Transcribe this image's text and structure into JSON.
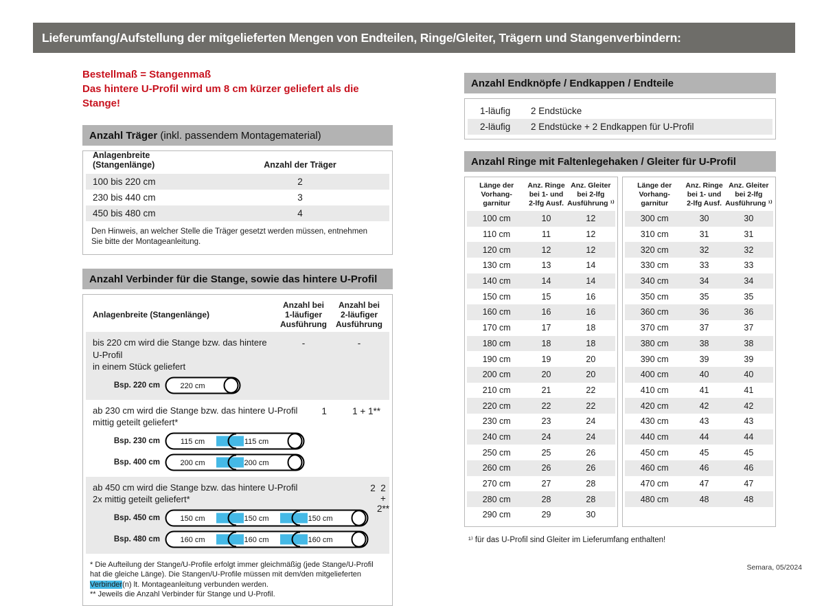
{
  "page": {
    "title": "Lieferumfang/Aufstellung der mitgelieferten Mengen von Endteilen, Ringe/Gleiter, Trägern und Stangenverbindern:",
    "footer": "Semara, 05/2024"
  },
  "colors": {
    "title_bar_gray": "#6e6d69",
    "section_header_gray": "#b3b3b3",
    "row_stripe_gray": "#e9e9e9",
    "accent_red": "#c8121e",
    "connector_cyan": "#45b9e6"
  },
  "notice": {
    "line1": "Bestellmaß = Stangenmaß",
    "line2": "Das hintere U-Profil wird um 8 cm kürzer geliefert als die Stange!"
  },
  "traeger": {
    "header_bold": "Anzahl Träger",
    "header_rest": " (inkl. passendem Montagematerial)",
    "col1": "Anlagenbreite (Stangenlänge)",
    "col2": "Anzahl der Träger",
    "rows": [
      [
        "100 bis 220 cm",
        "2"
      ],
      [
        "230 bis 440 cm",
        "3"
      ],
      [
        "450 bis 480 cm",
        "4"
      ]
    ],
    "note": "Den Hinweis, an welcher Stelle die Träger gesetzt werden müssen, entnehmen Sie bitte der Montageanleitung."
  },
  "verbinder": {
    "header": "Anzahl Verbinder für die Stange, sowie das hintere U-Profil",
    "col1": "Anlagenbreite (Stangenlänge)",
    "col2": "Anzahl bei\n1-läufiger\nAusführung",
    "col3": "Anzahl bei\n2-läufiger\nAusführung",
    "rows": [
      {
        "text": "bis 220 cm wird die Stange bzw. das hintere U-Profil\nin einem Stück geliefert",
        "v1": "-",
        "v2": "-",
        "rods": [
          {
            "label": "Bsp. 220 cm",
            "segments": [
              "220 cm"
            ]
          }
        ]
      },
      {
        "text": "ab 230 cm wird die Stange bzw. das hintere U-Profil\nmittig geteilt geliefert*",
        "v1": "1",
        "v2": "1 + 1**",
        "rods": [
          {
            "label": "Bsp. 230 cm",
            "segments": [
              "115 cm",
              "115 cm"
            ]
          },
          {
            "label": "Bsp. 400 cm",
            "segments": [
              "200 cm",
              "200 cm"
            ]
          }
        ]
      },
      {
        "text": "ab 450 cm wird die Stange bzw. das hintere U-Profil\n2x mittig geteilt geliefert*",
        "v1": "2",
        "v2": "2 + 2**",
        "rods": [
          {
            "label": "Bsp. 450 cm",
            "segments": [
              "150 cm",
              "150 cm",
              "150 cm"
            ]
          },
          {
            "label": "Bsp. 480 cm",
            "segments": [
              "160 cm",
              "160 cm",
              "160 cm"
            ]
          }
        ]
      }
    ],
    "footnote1_pre": "* Die Aufteilung der Stange/U-Profile erfolgt immer gleichmäßig (jede Stange/U-Profil hat die gleiche Länge). Die Stangen/U-Profile müssen mit dem/den mitgelieferten ",
    "footnote1_highlight": "Verbinder",
    "footnote1_post": "(n) lt. Montageanleitung verbunden werden.",
    "footnote2": "** Jeweils die Anzahl Verbinder für Stange und U-Profil."
  },
  "endteile": {
    "header": "Anzahl Endknöpfe / Endkappen / Endteile",
    "rows": [
      [
        "1-läufig",
        "2 Endstücke"
      ],
      [
        "2-läufig",
        "2 Endstücke + 2 Endkappen für U-Profil"
      ]
    ]
  },
  "ringe": {
    "header": "Anzahl Ringe mit Faltenlegehaken / Gleiter für U-Profil",
    "col_headers": [
      "Länge der\nVorhang-\ngarnitur",
      "Anz. Ringe\nbei 1- und\n2-lfg Ausf.",
      "Anz. Gleiter\nbei 2-lfg\nAusführung ¹⁾"
    ],
    "table_left": [
      [
        "100 cm",
        "10",
        "12"
      ],
      [
        "110 cm",
        "11",
        "12"
      ],
      [
        "120 cm",
        "12",
        "12"
      ],
      [
        "130 cm",
        "13",
        "14"
      ],
      [
        "140 cm",
        "14",
        "14"
      ],
      [
        "150 cm",
        "15",
        "16"
      ],
      [
        "160 cm",
        "16",
        "16"
      ],
      [
        "170 cm",
        "17",
        "18"
      ],
      [
        "180 cm",
        "18",
        "18"
      ],
      [
        "190 cm",
        "19",
        "20"
      ],
      [
        "200 cm",
        "20",
        "20"
      ],
      [
        "210 cm",
        "21",
        "22"
      ],
      [
        "220 cm",
        "22",
        "22"
      ],
      [
        "230 cm",
        "23",
        "24"
      ],
      [
        "240 cm",
        "24",
        "24"
      ],
      [
        "250 cm",
        "25",
        "26"
      ],
      [
        "260 cm",
        "26",
        "26"
      ],
      [
        "270 cm",
        "27",
        "28"
      ],
      [
        "280 cm",
        "28",
        "28"
      ],
      [
        "290 cm",
        "29",
        "30"
      ]
    ],
    "table_right": [
      [
        "300 cm",
        "30",
        "30"
      ],
      [
        "310 cm",
        "31",
        "31"
      ],
      [
        "320 cm",
        "32",
        "32"
      ],
      [
        "330 cm",
        "33",
        "33"
      ],
      [
        "340 cm",
        "34",
        "34"
      ],
      [
        "350 cm",
        "35",
        "35"
      ],
      [
        "360 cm",
        "36",
        "36"
      ],
      [
        "370 cm",
        "37",
        "37"
      ],
      [
        "380 cm",
        "38",
        "38"
      ],
      [
        "390 cm",
        "39",
        "39"
      ],
      [
        "400 cm",
        "40",
        "40"
      ],
      [
        "410 cm",
        "41",
        "41"
      ],
      [
        "420 cm",
        "42",
        "42"
      ],
      [
        "430 cm",
        "43",
        "43"
      ],
      [
        "440 cm",
        "44",
        "44"
      ],
      [
        "450 cm",
        "45",
        "45"
      ],
      [
        "460 cm",
        "46",
        "46"
      ],
      [
        "470 cm",
        "47",
        "47"
      ],
      [
        "480 cm",
        "48",
        "48"
      ]
    ],
    "footnote": "¹⁾ für das U-Profil sind Gleiter im Lieferumfang enthalten!"
  }
}
